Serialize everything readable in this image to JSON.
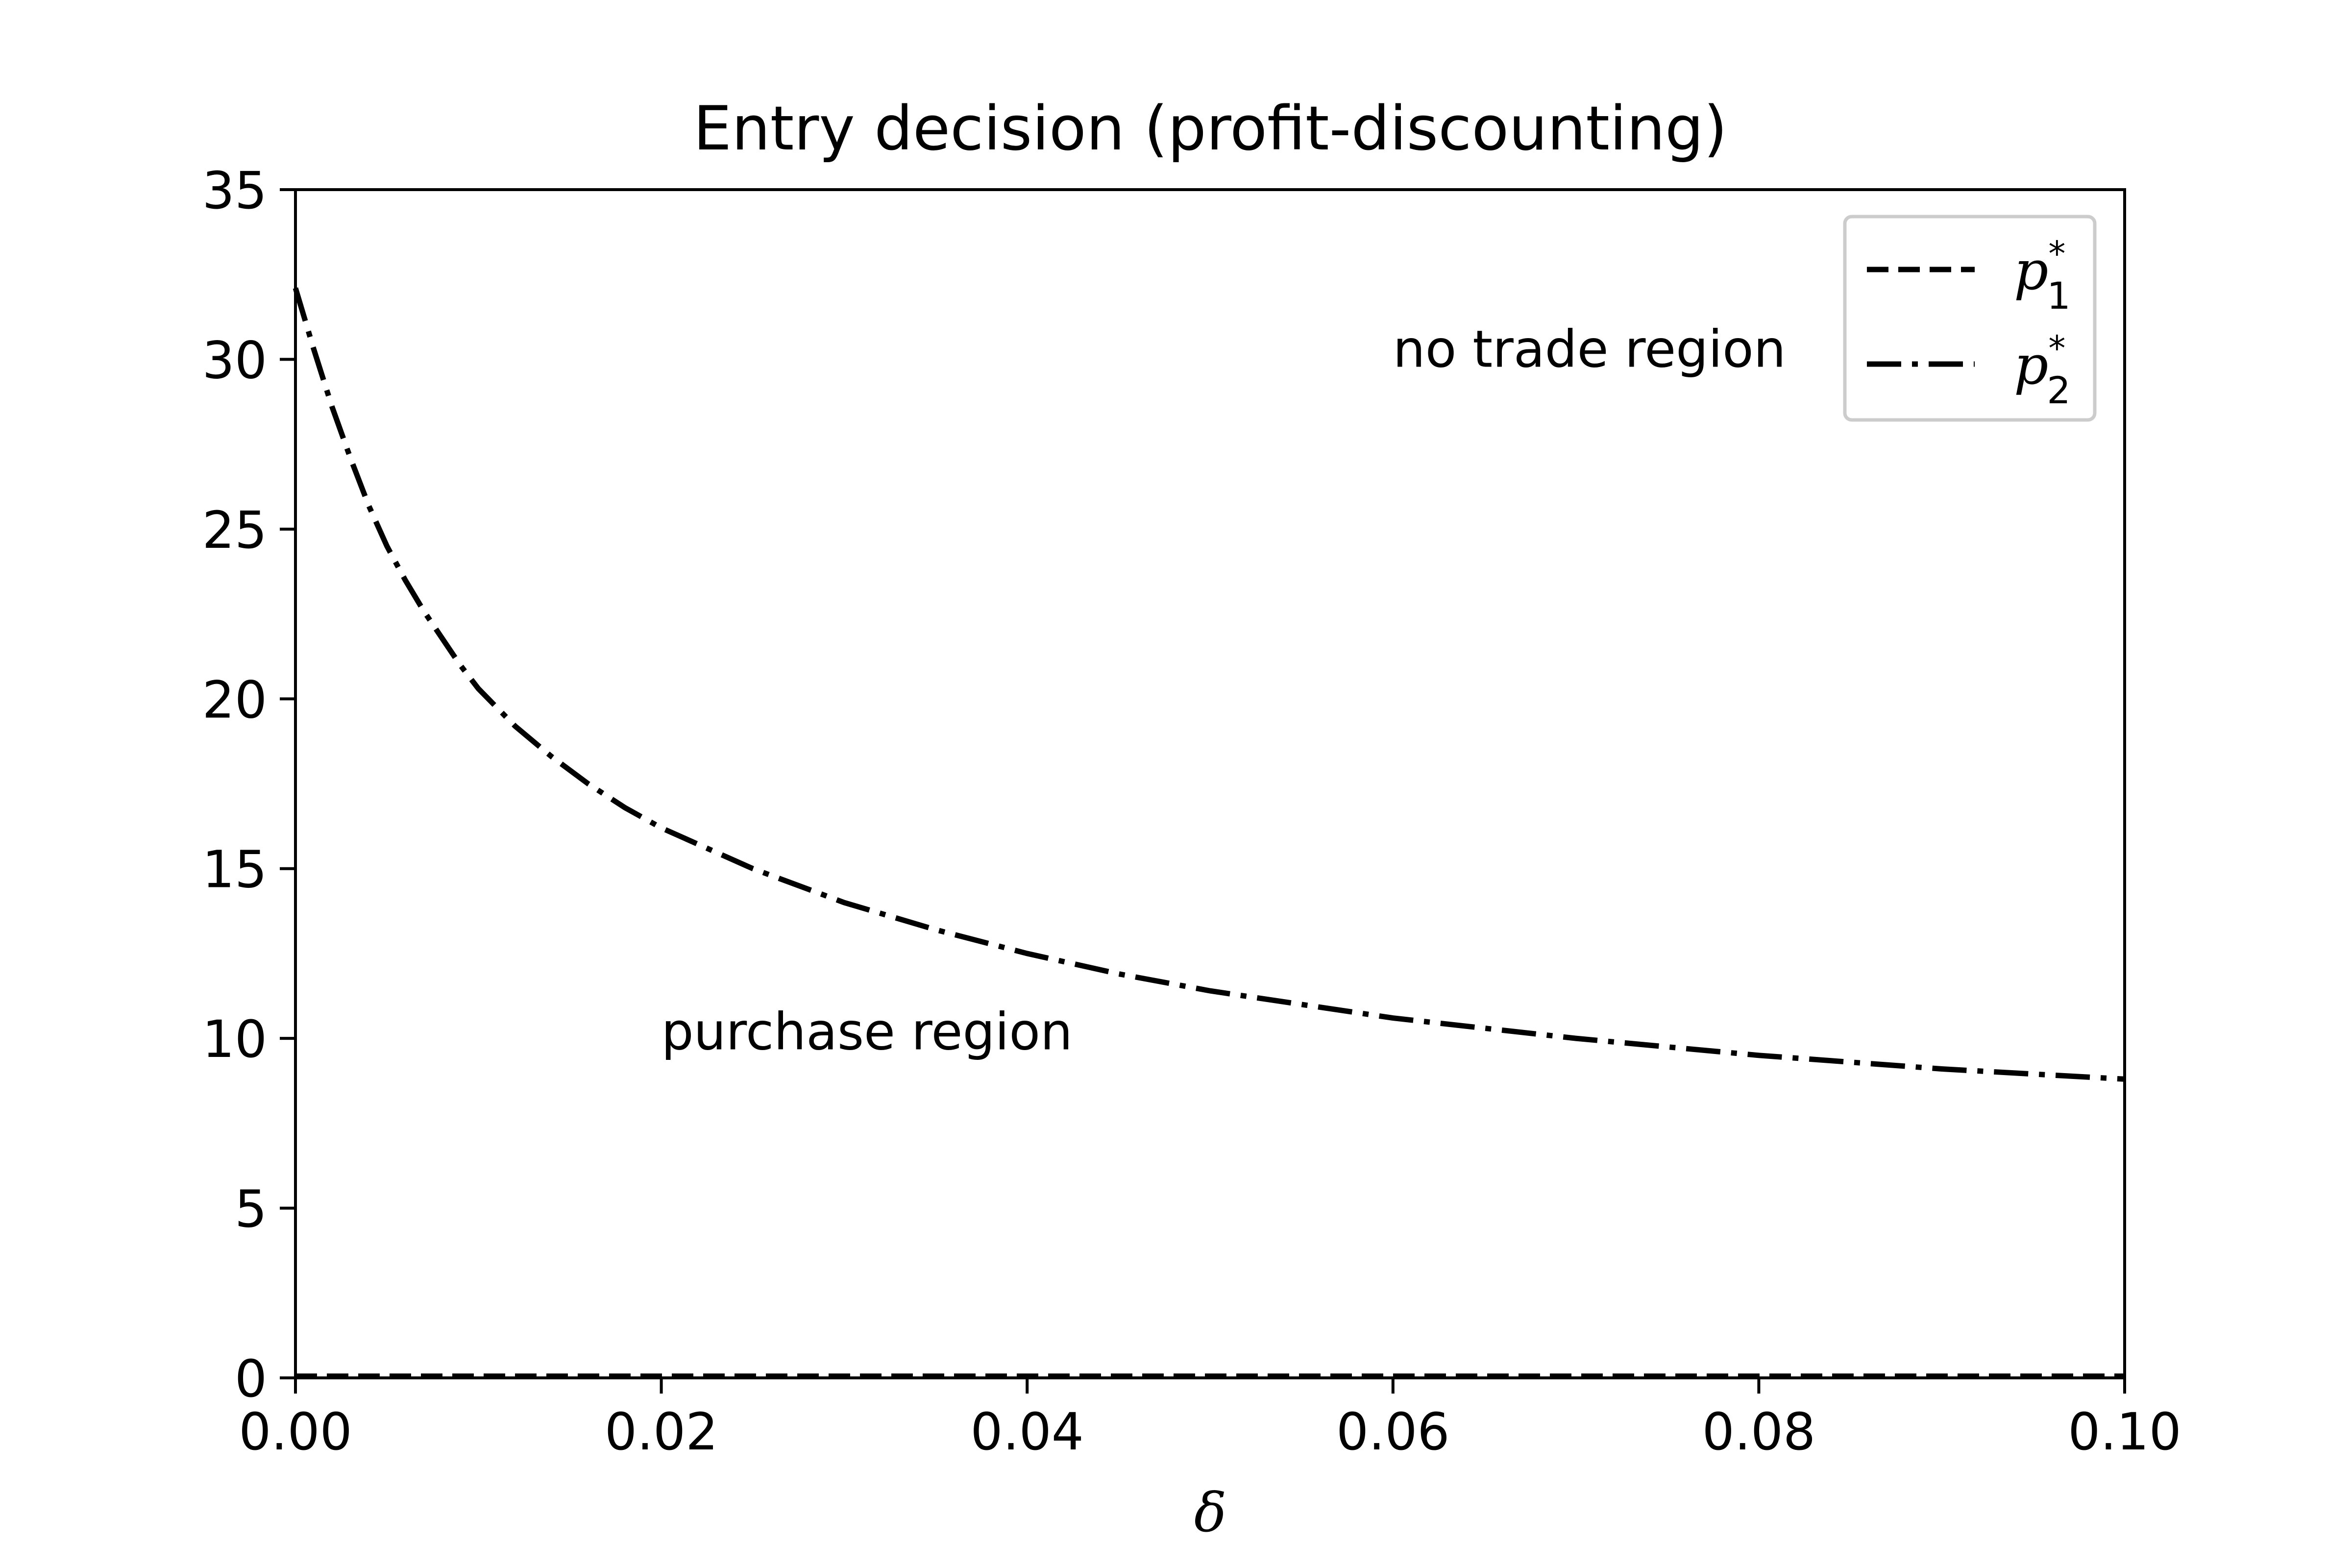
{
  "chart_data": {
    "type": "line",
    "title": "Entry decision (profit-discounting)",
    "xlabel": "δ",
    "ylabel": "",
    "xlim": [
      0.0,
      0.1
    ],
    "ylim": [
      0,
      35
    ],
    "x_ticks": [
      "0.00",
      "0.02",
      "0.04",
      "0.06",
      "0.08",
      "0.10"
    ],
    "y_ticks": [
      "0",
      "5",
      "10",
      "15",
      "20",
      "25",
      "30",
      "35"
    ],
    "grid": false,
    "legend_position": "top-right",
    "series": [
      {
        "name": "p",
        "name_sub": "1",
        "name_sup": "*",
        "style": "dashed",
        "color": "#000000",
        "x": [
          0.0,
          0.01,
          0.02,
          0.03,
          0.04,
          0.05,
          0.06,
          0.07,
          0.08,
          0.09,
          0.1
        ],
        "y": [
          0.05,
          0.05,
          0.05,
          0.05,
          0.05,
          0.05,
          0.05,
          0.05,
          0.05,
          0.05,
          0.05
        ]
      },
      {
        "name": "p",
        "name_sub": "2",
        "name_sup": "*",
        "style": "dashdot",
        "color": "#000000",
        "x": [
          0.0,
          0.001,
          0.002,
          0.003,
          0.004,
          0.005,
          0.006,
          0.007,
          0.008,
          0.009,
          0.01,
          0.012,
          0.014,
          0.016,
          0.018,
          0.02,
          0.025,
          0.03,
          0.035,
          0.04,
          0.045,
          0.05,
          0.055,
          0.06,
          0.065,
          0.07,
          0.075,
          0.08,
          0.085,
          0.09,
          0.095,
          0.1
        ],
        "y": [
          32.1,
          30.3,
          28.6,
          27.1,
          25.7,
          24.5,
          23.5,
          22.6,
          21.8,
          21.0,
          20.3,
          19.2,
          18.3,
          17.5,
          16.8,
          16.2,
          15.0,
          14.0,
          13.2,
          12.5,
          11.9,
          11.4,
          11.0,
          10.6,
          10.3,
          10.0,
          9.75,
          9.5,
          9.3,
          9.1,
          8.95,
          8.8
        ]
      }
    ],
    "annotations": [
      {
        "text": "no trade region",
        "x": 0.06,
        "y": 30.3
      },
      {
        "text": "purchase region",
        "x": 0.02,
        "y": 10.2
      }
    ]
  }
}
